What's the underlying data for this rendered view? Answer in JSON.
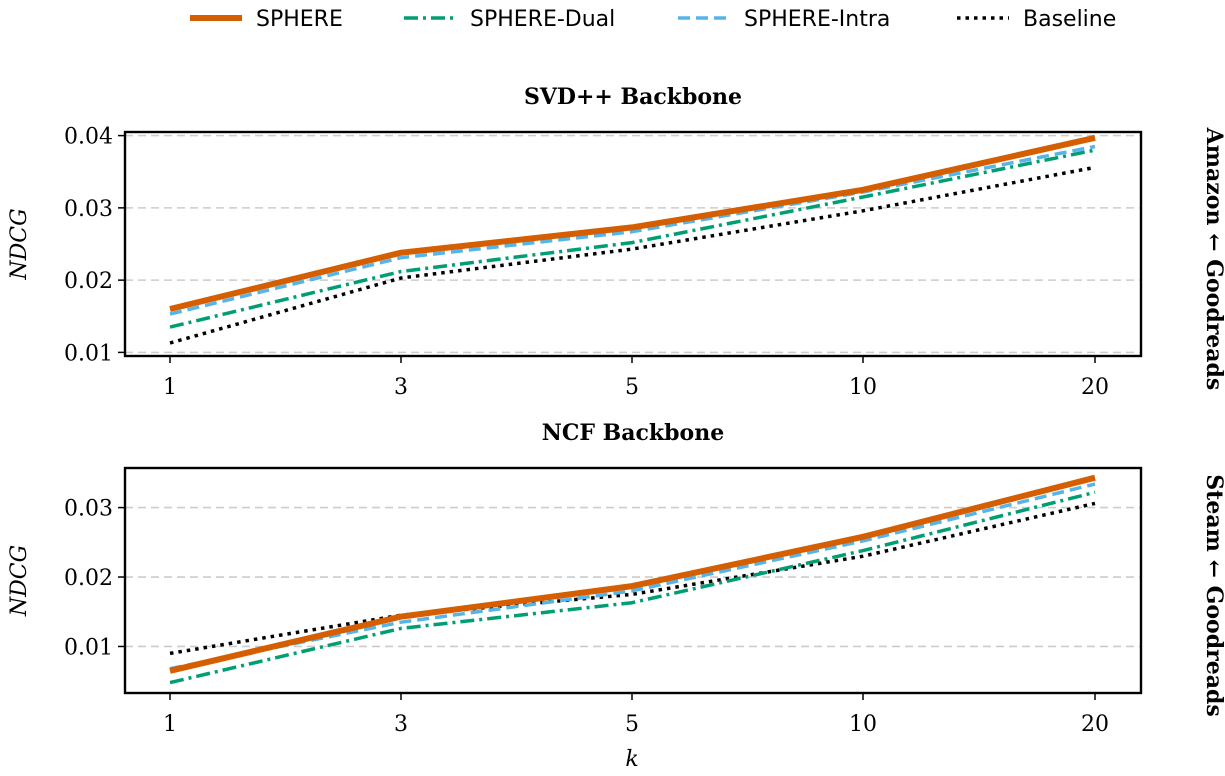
{
  "chart_data": [
    {
      "type": "line",
      "title": "SVD++ Backbone",
      "side_label": "Amazon ← Goodreads",
      "ylabel": "NDCG",
      "xlabel": "",
      "categories": [
        "1",
        "3",
        "5",
        "10",
        "20"
      ],
      "ylim": [
        0.0095,
        0.0405
      ],
      "yticks": [
        "0.01",
        "0.02",
        "0.03",
        "0.04"
      ],
      "ytick_values": [
        0.01,
        0.02,
        0.03,
        0.04
      ],
      "grid": "y-dashed",
      "series": [
        {
          "name": "SPHERE",
          "values": [
            0.016,
            0.0238,
            0.0273,
            0.0325,
            0.0397
          ],
          "color": "#d55e00",
          "style": "solid"
        },
        {
          "name": "SPHERE-Dual",
          "values": [
            0.0135,
            0.0212,
            0.0252,
            0.0315,
            0.038
          ],
          "color": "#009e73",
          "style": "dashdot"
        },
        {
          "name": "SPHERE-Intra",
          "values": [
            0.0153,
            0.0231,
            0.0267,
            0.0322,
            0.0385
          ],
          "color": "#56b4e9",
          "style": "dashed"
        },
        {
          "name": "Baseline",
          "values": [
            0.0113,
            0.0203,
            0.0243,
            0.0296,
            0.0356
          ],
          "color": "#000000",
          "style": "dotted"
        }
      ]
    },
    {
      "type": "line",
      "title": "NCF Backbone",
      "side_label": "Steam ← Goodreads",
      "ylabel": "NDCG",
      "xlabel": "k",
      "categories": [
        "1",
        "3",
        "5",
        "10",
        "20"
      ],
      "ylim": [
        0.0033,
        0.0357
      ],
      "yticks": [
        "0.01",
        "0.02",
        "0.03"
      ],
      "ytick_values": [
        0.01,
        0.02,
        0.03
      ],
      "grid": "y-dashed",
      "series": [
        {
          "name": "SPHERE",
          "values": [
            0.0065,
            0.0143,
            0.0187,
            0.0258,
            0.0343
          ],
          "color": "#d55e00",
          "style": "solid"
        },
        {
          "name": "SPHERE-Dual",
          "values": [
            0.0048,
            0.0126,
            0.0163,
            0.0238,
            0.0322
          ],
          "color": "#009e73",
          "style": "dashdot"
        },
        {
          "name": "SPHERE-Intra",
          "values": [
            0.0068,
            0.0135,
            0.018,
            0.0252,
            0.0334
          ],
          "color": "#56b4e9",
          "style": "dashed"
        },
        {
          "name": "Baseline",
          "values": [
            0.009,
            0.0145,
            0.0175,
            0.023,
            0.0306
          ],
          "color": "#000000",
          "style": "dotted"
        }
      ]
    }
  ],
  "legend": [
    {
      "name": "SPHERE",
      "color": "#d55e00",
      "style": "solid"
    },
    {
      "name": "SPHERE-Dual",
      "color": "#009e73",
      "style": "dashdot"
    },
    {
      "name": "SPHERE-Intra",
      "color": "#56b4e9",
      "style": "dashed"
    },
    {
      "name": "Baseline",
      "color": "#000000",
      "style": "dotted"
    }
  ]
}
